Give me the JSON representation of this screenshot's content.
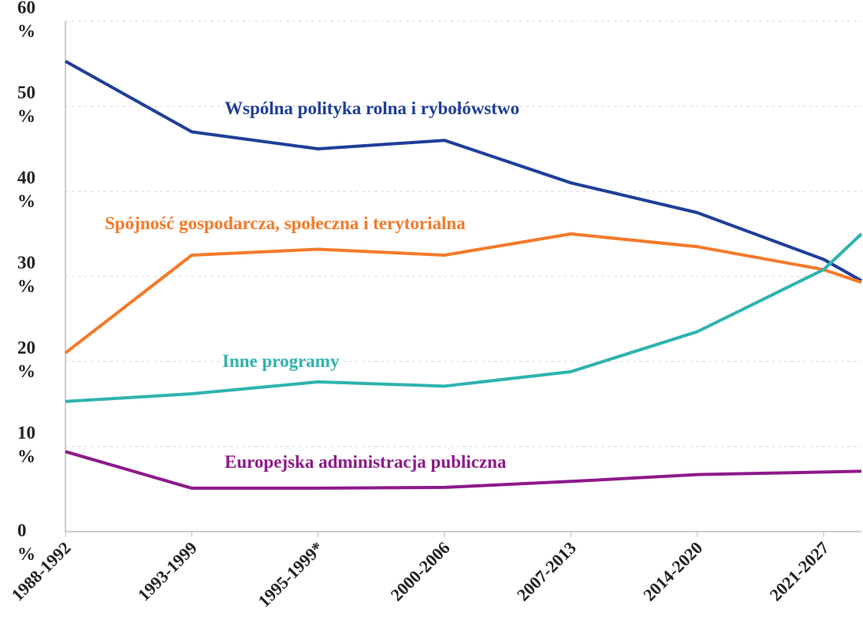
{
  "chart_data": {
    "type": "line",
    "categories": [
      "1988-1992",
      "1993-1999",
      "1995-1999*",
      "2000-2006",
      "2007-2013",
      "2014-2020",
      "2021-2027",
      null
    ],
    "series": [
      {
        "name": "Wspólna polityka rolna i rybołówstwo",
        "color": "#1f3f99",
        "values": [
          55.3,
          47.0,
          45.0,
          46.0,
          41.0,
          37.5,
          32.0,
          29.5
        ]
      },
      {
        "name": "Spójność gospodarcza, społeczna i terytorialna",
        "color": "#f47a2a",
        "values": [
          21.0,
          32.5,
          33.2,
          32.5,
          35.0,
          33.5,
          30.8,
          29.3
        ]
      },
      {
        "name": "Inne programy",
        "color": "#2fb3b0",
        "values": [
          15.3,
          16.2,
          17.6,
          17.1,
          18.8,
          23.5,
          30.8,
          35.0
        ]
      },
      {
        "name": "Europejska administracja publiczna",
        "color": "#8e1a8a",
        "values": [
          9.4,
          5.1,
          5.1,
          5.2,
          5.9,
          6.7,
          7.0,
          7.1
        ]
      }
    ],
    "ylim": [
      0,
      60
    ],
    "yticks": [
      {
        "value": 0,
        "label": "0 %"
      },
      {
        "value": 10,
        "label": "10\n%"
      },
      {
        "value": 20,
        "label": "20\n%"
      },
      {
        "value": 30,
        "label": "30\n%"
      },
      {
        "value": 40,
        "label": "40\n%"
      },
      {
        "value": 50,
        "label": "50\n%"
      },
      {
        "value": 60,
        "label": "60\n%"
      }
    ],
    "grid": true
  }
}
